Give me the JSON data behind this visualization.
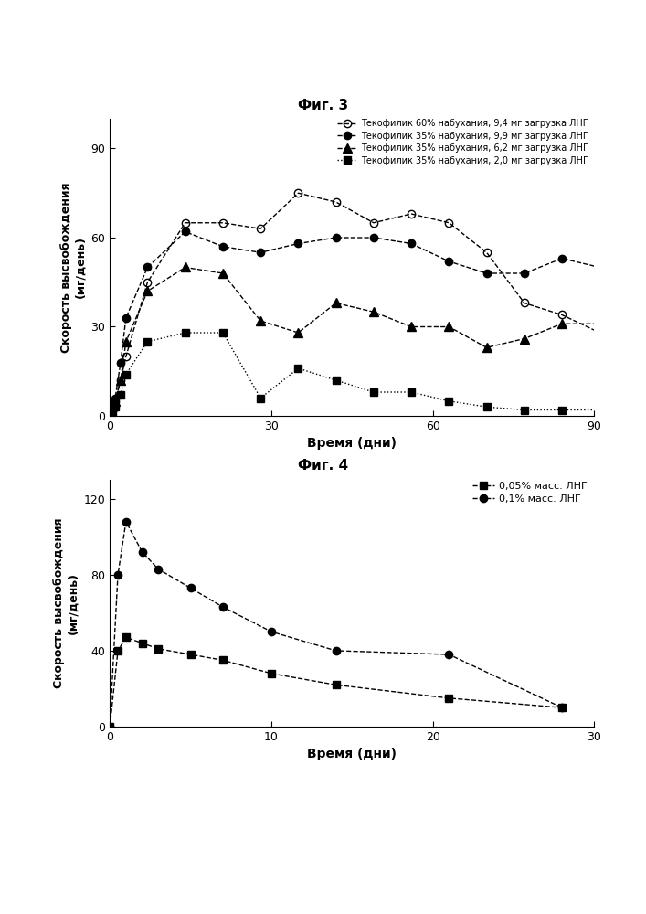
{
  "fig3_title": "Фиг. 3",
  "fig4_title": "Фиг. 4",
  "xlabel": "Время (дни)",
  "ylabel": "Скорость высвобождения\n(мг/день)",
  "fig3": {
    "series": [
      {
        "label": "Текофилик 60% набухания, 9,4 мг загрузка ЛНГ",
        "x": [
          0,
          0.5,
          1,
          2,
          3,
          7,
          14,
          21,
          28,
          35,
          42,
          49,
          56,
          63,
          70,
          77,
          84,
          91
        ],
        "y": [
          0,
          2,
          5,
          12,
          20,
          45,
          65,
          65,
          63,
          75,
          72,
          65,
          68,
          65,
          55,
          38,
          34,
          28
        ],
        "marker": "o",
        "fillstyle": "none",
        "color": "black",
        "linestyle": "--"
      },
      {
        "label": "Текофилик 35% набухания, 9,9 мг загрузка ЛНГ",
        "x": [
          0,
          0.5,
          1,
          2,
          3,
          7,
          14,
          21,
          28,
          35,
          42,
          49,
          56,
          63,
          70,
          77,
          84,
          91
        ],
        "y": [
          0,
          2,
          6,
          18,
          33,
          50,
          62,
          57,
          55,
          58,
          60,
          60,
          58,
          52,
          48,
          48,
          53,
          50
        ],
        "marker": "o",
        "fillstyle": "full",
        "color": "black",
        "linestyle": "--"
      },
      {
        "label": "Текофилик 35% набухания, 6,2 мг загрузка ЛНГ",
        "x": [
          0,
          0.5,
          1,
          2,
          3,
          7,
          14,
          21,
          28,
          35,
          42,
          49,
          56,
          63,
          70,
          77,
          84,
          91
        ],
        "y": [
          0,
          1,
          5,
          12,
          25,
          42,
          50,
          48,
          32,
          28,
          38,
          35,
          30,
          30,
          23,
          26,
          31,
          31
        ],
        "marker": "^",
        "fillstyle": "full",
        "color": "black",
        "linestyle": "--"
      },
      {
        "label": "Текофилик 35% набухания, 2,0 мг загрузка ЛНГ",
        "x": [
          0,
          0.5,
          1,
          2,
          3,
          7,
          14,
          21,
          28,
          35,
          42,
          49,
          56,
          63,
          70,
          77,
          84,
          91
        ],
        "y": [
          0,
          1,
          3,
          7,
          14,
          25,
          28,
          28,
          6,
          16,
          12,
          8,
          8,
          5,
          3,
          2,
          2,
          2
        ],
        "marker": "s",
        "fillstyle": "full",
        "color": "black",
        "linestyle": ":"
      }
    ],
    "xlim": [
      0,
      90
    ],
    "ylim": [
      0,
      100
    ],
    "xticks": [
      0,
      30,
      60,
      90
    ],
    "yticks": [
      0,
      30,
      60,
      90
    ]
  },
  "fig4": {
    "series": [
      {
        "label": "0,05% масс. ЛНГ",
        "x": [
          0,
          0.5,
          1,
          2,
          3,
          5,
          7,
          10,
          14,
          21,
          28
        ],
        "y": [
          0,
          40,
          47,
          44,
          41,
          38,
          35,
          28,
          22,
          15,
          10
        ],
        "marker": "s",
        "fillstyle": "full",
        "color": "black",
        "linestyle": "--"
      },
      {
        "label": "0,1% масс. ЛНГ",
        "x": [
          0,
          0.5,
          1,
          2,
          3,
          5,
          7,
          10,
          14,
          21,
          28
        ],
        "y": [
          0,
          80,
          108,
          92,
          83,
          73,
          63,
          50,
          40,
          38,
          10
        ],
        "marker": "o",
        "fillstyle": "full",
        "color": "black",
        "linestyle": "--"
      }
    ],
    "xlim": [
      0,
      30
    ],
    "ylim": [
      0,
      130
    ],
    "xticks": [
      0,
      10,
      20,
      30
    ],
    "yticks": [
      0,
      40,
      80,
      120
    ]
  }
}
